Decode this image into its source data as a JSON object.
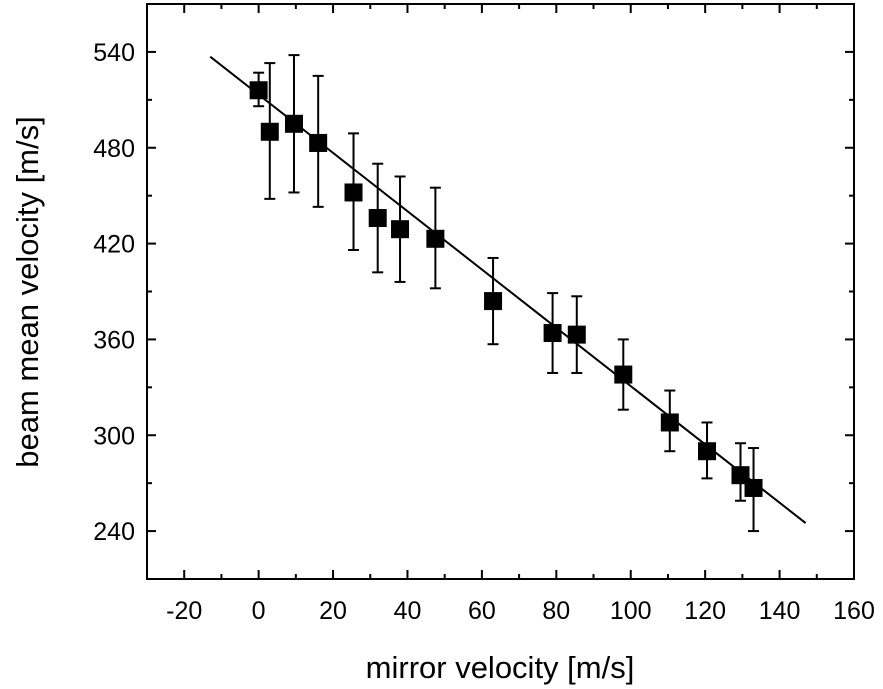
{
  "chart_data": {
    "type": "scatter",
    "title": "",
    "xlabel": "mirror velocity [m/s]",
    "ylabel": "beam mean velocity [m/s]",
    "xlim": [
      -30,
      160
    ],
    "ylim": [
      210,
      570
    ],
    "xticks": [
      -20,
      0,
      20,
      40,
      60,
      80,
      100,
      120,
      140,
      160
    ],
    "xtick_labels": [
      "-20",
      "0",
      "20",
      "40",
      "60",
      "80",
      "100",
      "120",
      "140",
      "160"
    ],
    "yticks": [
      240,
      300,
      360,
      420,
      480,
      540
    ],
    "ytick_labels": [
      "240",
      "300",
      "360",
      "420",
      "480",
      "540"
    ],
    "grid": false,
    "legend": "none",
    "series": [
      {
        "marker": "square",
        "points": [
          {
            "x": 0.0,
            "y": 516,
            "err_lo": 10,
            "err_hi": 11
          },
          {
            "x": 3.0,
            "y": 490,
            "err_lo": 42,
            "err_hi": 43
          },
          {
            "x": 9.5,
            "y": 495,
            "err_lo": 43,
            "err_hi": 43
          },
          {
            "x": 16.0,
            "y": 483,
            "err_lo": 40,
            "err_hi": 42
          },
          {
            "x": 25.5,
            "y": 452,
            "err_lo": 36,
            "err_hi": 37
          },
          {
            "x": 32.0,
            "y": 436,
            "err_lo": 34,
            "err_hi": 34
          },
          {
            "x": 38.0,
            "y": 429,
            "err_lo": 33,
            "err_hi": 33
          },
          {
            "x": 47.5,
            "y": 423,
            "err_lo": 31,
            "err_hi": 32
          },
          {
            "x": 63.0,
            "y": 384,
            "err_lo": 27,
            "err_hi": 27
          },
          {
            "x": 79.0,
            "y": 364,
            "err_lo": 25,
            "err_hi": 25
          },
          {
            "x": 85.5,
            "y": 363,
            "err_lo": 24,
            "err_hi": 24
          },
          {
            "x": 98.0,
            "y": 338,
            "err_lo": 22,
            "err_hi": 22
          },
          {
            "x": 110.5,
            "y": 308,
            "err_lo": 18,
            "err_hi": 20
          },
          {
            "x": 120.5,
            "y": 290,
            "err_lo": 17,
            "err_hi": 18
          },
          {
            "x": 129.5,
            "y": 275,
            "err_lo": 16,
            "err_hi": 20
          },
          {
            "x": 133.0,
            "y": 267,
            "err_lo": 27,
            "err_hi": 25
          }
        ]
      }
    ],
    "fit_line": {
      "x": [
        -13,
        147
      ],
      "y": [
        537,
        245
      ]
    }
  }
}
